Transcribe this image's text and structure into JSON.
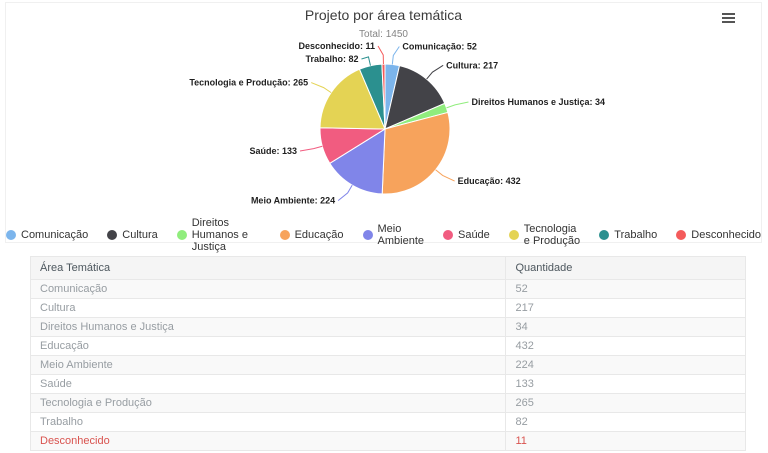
{
  "page": {
    "background": "#ffffff"
  },
  "toolbar": {
    "menu_icon": "hamburger-menu"
  },
  "chart_data": {
    "type": "pie",
    "title": "Projeto por área temática",
    "subtitle": "Total: 1450",
    "total": 1450,
    "categories": [
      "Comunicação",
      "Cultura",
      "Direitos Humanos e Justiça",
      "Educação",
      "Meio Ambiente",
      "Saúde",
      "Tecnologia e Produção",
      "Trabalho",
      "Desconhecido"
    ],
    "values": [
      52,
      217,
      34,
      432,
      224,
      133,
      265,
      82,
      11
    ],
    "colors": [
      "#7cb5ec",
      "#434348",
      "#90ed7d",
      "#f7a35c",
      "#8085e9",
      "#f15c80",
      "#e4d354",
      "#2b908f",
      "#f45b5b"
    ],
    "data_label_format": "{name}: {value}",
    "legend_position": "bottom",
    "start_angle_deg": -90,
    "direction": "clockwise"
  },
  "table": {
    "headers": [
      "Área Temática",
      "Quantidade"
    ],
    "rows": [
      [
        "Comunicação",
        "52"
      ],
      [
        "Cultura",
        "217"
      ],
      [
        "Direitos Humanos e Justiça",
        "34"
      ],
      [
        "Educação",
        "432"
      ],
      [
        "Meio Ambiente",
        "224"
      ],
      [
        "Saúde",
        "133"
      ],
      [
        "Tecnologia e Produção",
        "265"
      ],
      [
        "Trabalho",
        "82"
      ],
      [
        "Desconhecido",
        "11"
      ]
    ],
    "highlight_row": "Desconhecido",
    "highlight_color": "#d9534f"
  }
}
